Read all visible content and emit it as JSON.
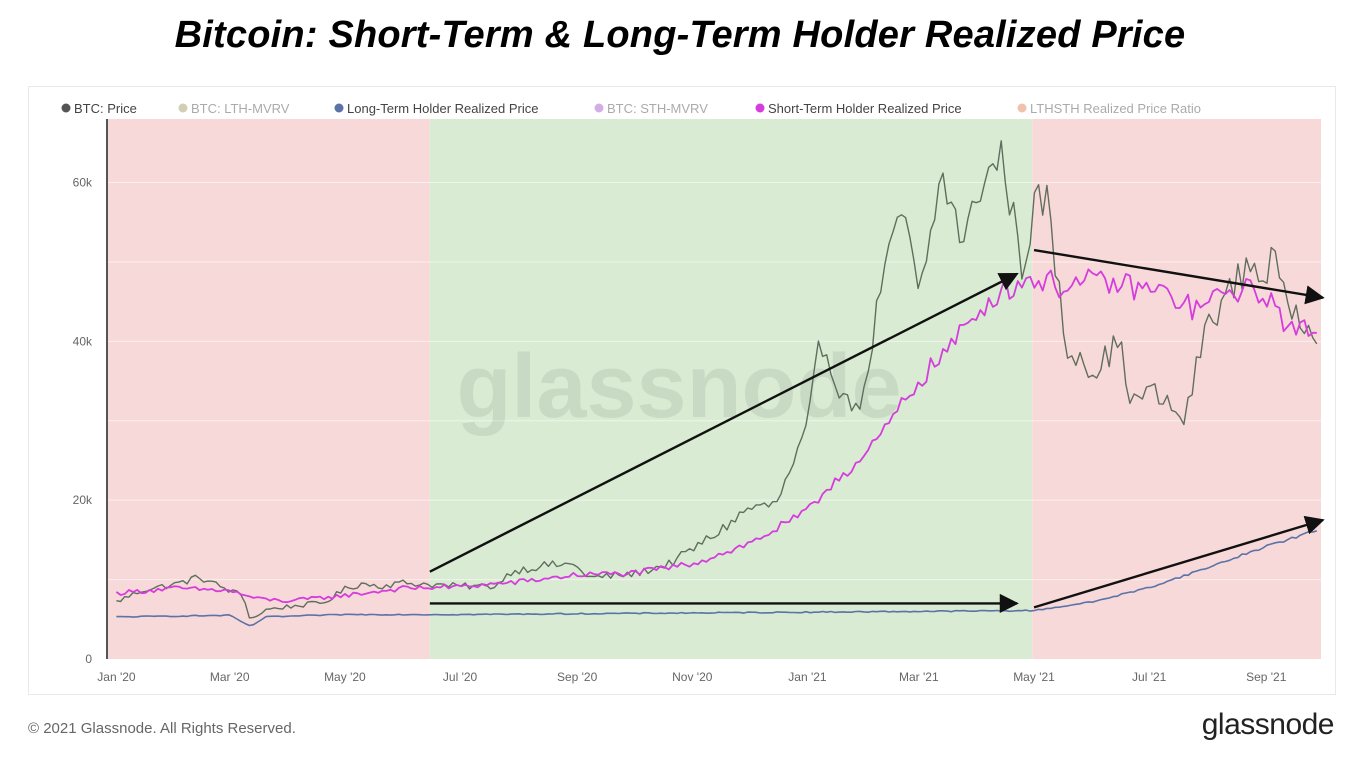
{
  "title": "Bitcoin: Short-Term & Long-Term Holder Realized Price",
  "footer": {
    "copyright": "© 2021 Glassnode. All Rights Reserved.",
    "logo": "glassnode"
  },
  "watermark": "glassnode",
  "colors": {
    "btc_price": "#5f6e5d",
    "lth_mvrv": "#9a9460",
    "lth_realized": "#5b73a7",
    "sth_mvrv": "#a04ec9",
    "sth_realized": "#d53ddc",
    "ratio": "#e07a4b",
    "band_red": "#f8d9d9",
    "band_green": "#d9ebd3"
  },
  "chart_data": {
    "type": "line",
    "title": "Bitcoin: Short-Term & Long-Term Holder Realized Price",
    "x_unit": "date",
    "ylim": [
      0,
      68000
    ],
    "xlim": [
      "2019-12-27",
      "2021-09-30"
    ],
    "y_ticks": [
      {
        "value": 0,
        "label": "0"
      },
      {
        "value": 20000,
        "label": "20k"
      },
      {
        "value": 40000,
        "label": "40k"
      },
      {
        "value": 60000,
        "label": "60k"
      }
    ],
    "x_ticks": [
      {
        "date": "2020-01-01",
        "label": "Jan '20"
      },
      {
        "date": "2020-03-01",
        "label": "Mar '20"
      },
      {
        "date": "2020-05-01",
        "label": "May '20"
      },
      {
        "date": "2020-07-01",
        "label": "Jul '20"
      },
      {
        "date": "2020-09-01",
        "label": "Sep '20"
      },
      {
        "date": "2020-11-01",
        "label": "Nov '20"
      },
      {
        "date": "2021-01-01",
        "label": "Jan '21"
      },
      {
        "date": "2021-03-01",
        "label": "Mar '21"
      },
      {
        "date": "2021-05-01",
        "label": "May '21"
      },
      {
        "date": "2021-07-01",
        "label": "Jul '21"
      },
      {
        "date": "2021-09-01",
        "label": "Sep '21"
      }
    ],
    "legend": {
      "placement": "top-left",
      "items": [
        {
          "label": "BTC: Price",
          "color": "#555555",
          "faded": false
        },
        {
          "label": "BTC: LTH-MVRV",
          "color": "#9a9460",
          "faded": true
        },
        {
          "label": "Long-Term Holder Realized Price",
          "color": "#5b73a7",
          "faded": false
        },
        {
          "label": "BTC: STH-MVRV",
          "color": "#a04ec9",
          "faded": true
        },
        {
          "label": "Short-Term Holder Realized Price",
          "color": "#d53ddc",
          "faded": false
        },
        {
          "label": "LTHSTH Realized Price Ratio",
          "color": "#e07a4b",
          "faded": true
        }
      ]
    },
    "bands": [
      {
        "start": "2019-12-27",
        "end": "2020-06-15",
        "color": "red"
      },
      {
        "start": "2020-06-15",
        "end": "2021-04-30",
        "color": "green"
      },
      {
        "start": "2021-04-30",
        "end": "2021-09-30",
        "color": "red"
      }
    ],
    "series": [
      {
        "name": "BTC: Price",
        "color": "#5f6e5d",
        "points": [
          [
            "2020-01-01",
            7200
          ],
          [
            "2020-01-15",
            8700
          ],
          [
            "2020-02-01",
            9400
          ],
          [
            "2020-02-14",
            10300
          ],
          [
            "2020-03-01",
            8600
          ],
          [
            "2020-03-08",
            8000
          ],
          [
            "2020-03-12",
            4900
          ],
          [
            "2020-03-20",
            6200
          ],
          [
            "2020-04-01",
            6600
          ],
          [
            "2020-04-20",
            7100
          ],
          [
            "2020-05-01",
            8800
          ],
          [
            "2020-05-10",
            9500
          ],
          [
            "2020-05-20",
            9200
          ],
          [
            "2020-06-01",
            9600
          ],
          [
            "2020-06-15",
            9400
          ],
          [
            "2020-07-01",
            9150
          ],
          [
            "2020-07-20",
            9200
          ],
          [
            "2020-07-28",
            11000
          ],
          [
            "2020-08-15",
            11800
          ],
          [
            "2020-09-01",
            11900
          ],
          [
            "2020-09-06",
            10200
          ],
          [
            "2020-10-01",
            10700
          ],
          [
            "2020-10-20",
            12000
          ],
          [
            "2020-11-01",
            13800
          ],
          [
            "2020-11-15",
            16000
          ],
          [
            "2020-12-01",
            19000
          ],
          [
            "2020-12-15",
            19400
          ],
          [
            "2020-12-25",
            24500
          ],
          [
            "2021-01-01",
            29000
          ],
          [
            "2021-01-08",
            40500
          ],
          [
            "2021-01-15",
            36000
          ],
          [
            "2021-01-22",
            32000
          ],
          [
            "2021-01-31",
            33000
          ],
          [
            "2021-02-08",
            46000
          ],
          [
            "2021-02-21",
            57000
          ],
          [
            "2021-03-01",
            45000
          ],
          [
            "2021-03-13",
            61000
          ],
          [
            "2021-03-25",
            52000
          ],
          [
            "2021-04-01",
            59000
          ],
          [
            "2021-04-14",
            63500
          ],
          [
            "2021-04-25",
            49000
          ],
          [
            "2021-05-01",
            57000
          ],
          [
            "2021-05-08",
            58000
          ],
          [
            "2021-05-12",
            50000
          ],
          [
            "2021-05-19",
            38000
          ],
          [
            "2021-05-25",
            39000
          ],
          [
            "2021-06-01",
            36000
          ],
          [
            "2021-06-15",
            40000
          ],
          [
            "2021-06-22",
            32000
          ],
          [
            "2021-07-01",
            34000
          ],
          [
            "2021-07-20",
            30000
          ],
          [
            "2021-07-31",
            42000
          ],
          [
            "2021-08-15",
            47000
          ],
          [
            "2021-08-23",
            50000
          ],
          [
            "2021-09-01",
            48000
          ],
          [
            "2021-09-06",
            52000
          ],
          [
            "2021-09-08",
            46000
          ],
          [
            "2021-09-20",
            43000
          ],
          [
            "2021-09-28",
            41500
          ]
        ]
      },
      {
        "name": "Short-Term Holder Realized Price",
        "color": "#d53ddc",
        "points": [
          [
            "2020-01-01",
            8300
          ],
          [
            "2020-02-01",
            8900
          ],
          [
            "2020-03-01",
            8600
          ],
          [
            "2020-03-15",
            7600
          ],
          [
            "2020-04-01",
            7300
          ],
          [
            "2020-05-01",
            8000
          ],
          [
            "2020-06-01",
            8900
          ],
          [
            "2020-07-01",
            9100
          ],
          [
            "2020-08-01",
            9700
          ],
          [
            "2020-09-01",
            10600
          ],
          [
            "2020-10-01",
            10800
          ],
          [
            "2020-11-01",
            12000
          ],
          [
            "2020-12-01",
            14500
          ],
          [
            "2021-01-01",
            18500
          ],
          [
            "2021-01-15",
            22500
          ],
          [
            "2021-02-01",
            25500
          ],
          [
            "2021-03-01",
            35000
          ],
          [
            "2021-03-20",
            40000
          ],
          [
            "2021-04-10",
            46000
          ],
          [
            "2021-04-30",
            48000
          ],
          [
            "2021-05-15",
            47000
          ],
          [
            "2021-06-01",
            47500
          ],
          [
            "2021-06-20",
            47000
          ],
          [
            "2021-07-10",
            46000
          ],
          [
            "2021-07-25",
            44000
          ],
          [
            "2021-08-15",
            46500
          ],
          [
            "2021-09-01",
            46000
          ],
          [
            "2021-09-15",
            41000
          ],
          [
            "2021-09-28",
            42000
          ]
        ]
      },
      {
        "name": "Long-Term Holder Realized Price",
        "color": "#5b73a7",
        "points": [
          [
            "2020-01-01",
            5300
          ],
          [
            "2020-03-01",
            5500
          ],
          [
            "2020-03-12",
            4100
          ],
          [
            "2020-03-20",
            5300
          ],
          [
            "2020-05-01",
            5600
          ],
          [
            "2020-07-01",
            5600
          ],
          [
            "2020-09-01",
            5700
          ],
          [
            "2020-11-01",
            5800
          ],
          [
            "2021-01-01",
            5900
          ],
          [
            "2021-03-01",
            6000
          ],
          [
            "2021-05-01",
            6100
          ],
          [
            "2021-06-01",
            7200
          ],
          [
            "2021-07-01",
            9000
          ],
          [
            "2021-08-01",
            11500
          ],
          [
            "2021-09-01",
            14200
          ],
          [
            "2021-09-28",
            16200
          ]
        ]
      }
    ],
    "annotations": [
      {
        "type": "arrow",
        "from": [
          "2020-06-15",
          11000
        ],
        "to": [
          "2021-04-22",
          48500
        ]
      },
      {
        "type": "arrow",
        "from": [
          "2020-06-15",
          7000
        ],
        "to": [
          "2021-04-22",
          7000
        ]
      },
      {
        "type": "arrow",
        "from": [
          "2021-05-01",
          51500
        ],
        "to": [
          "2021-10-01",
          45500
        ]
      },
      {
        "type": "arrow",
        "from": [
          "2021-05-01",
          6500
        ],
        "to": [
          "2021-10-01",
          17500
        ]
      }
    ]
  }
}
